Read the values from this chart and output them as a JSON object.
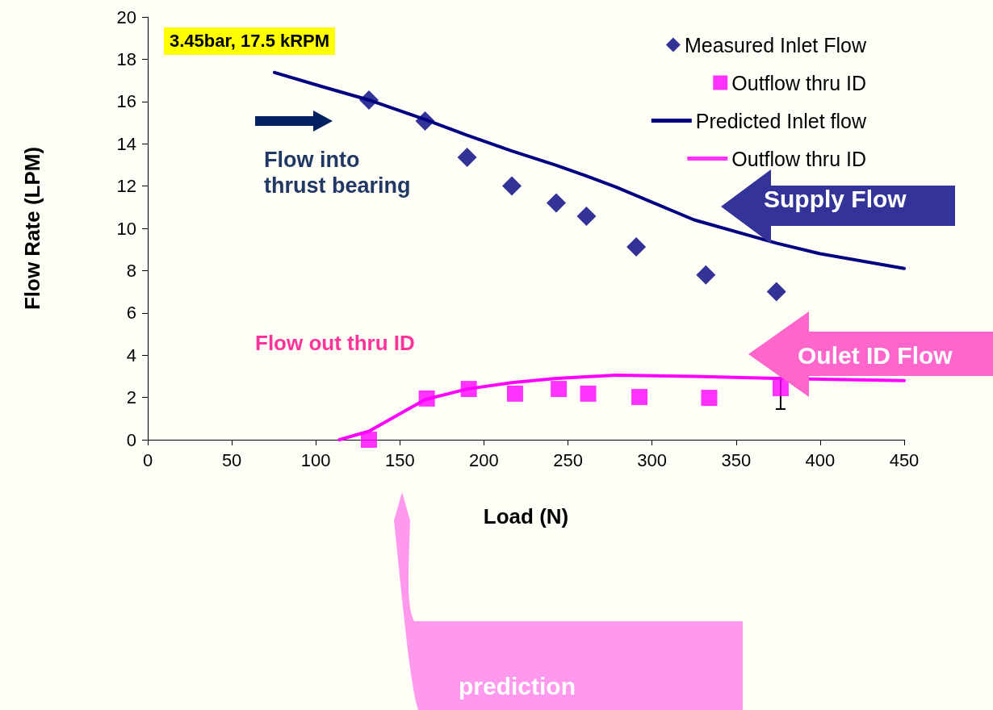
{
  "chart_data": {
    "type": "scatter",
    "xlabel": "Load (N)",
    "ylabel": "Flow Rate (LPM)",
    "xlim": [
      0,
      450
    ],
    "xticks": [
      0,
      50,
      100,
      150,
      200,
      250,
      300,
      350,
      400,
      450
    ],
    "ylim": [
      0,
      20
    ],
    "yticks": [
      0,
      2,
      4,
      6,
      8,
      10,
      12,
      14,
      16,
      18,
      20
    ],
    "grid": false,
    "legend": "top right",
    "annotations": [
      "3.45bar, 17.5 kRPM",
      "Flow into thrust bearing",
      "Supply Flow",
      "Flow out thru ID",
      "Oulet ID Flow",
      "prediction"
    ],
    "series": [
      {
        "name": "Measured Inlet Flow",
        "marker": "diamond",
        "color": "#000080",
        "x": [
          131.6,
          165,
          190,
          216.6,
          243,
          261,
          290.6,
          332,
          374
        ],
        "values": [
          16.07,
          15.08,
          13.36,
          12.0,
          11.2,
          10.57,
          9.12,
          7.8,
          7.0
        ]
      },
      {
        "name": "Outflow thru ID",
        "marker": "square",
        "color": "#ff00ff",
        "x": [
          131.6,
          166,
          191,
          218.5,
          244.5,
          262,
          292.5,
          334,
          376.5
        ],
        "values": [
          0,
          1.95,
          2.4,
          2.18,
          2.4,
          2.18,
          2.02,
          1.98,
          2.44
        ],
        "errors": [
          null,
          null,
          null,
          null,
          null,
          null,
          null,
          null,
          [
            1.45,
            3.2
          ]
        ]
      },
      {
        "name": "Predicted Inlet flow",
        "type": "line",
        "marker": "none",
        "color": "#000080",
        "x": [
          75.4,
          104,
          131.6,
          165,
          190,
          216.6,
          243,
          261,
          278.6,
          325,
          374,
          400,
          450
        ],
        "values": [
          17.37,
          16.7,
          16.07,
          15.15,
          14.4,
          13.66,
          12.98,
          12.48,
          11.95,
          10.4,
          9.3,
          8.8,
          8.1
        ]
      },
      {
        "name": "Outflow thru ID",
        "type": "line",
        "marker": "none",
        "color": "#ff00ff",
        "x": [
          114,
          131.6,
          165,
          190,
          216.6,
          243,
          278.6,
          325,
          374,
          450
        ],
        "values": [
          0,
          0.4,
          1.9,
          2.4,
          2.7,
          2.9,
          3.05,
          3.0,
          2.9,
          2.8
        ]
      }
    ]
  }
}
